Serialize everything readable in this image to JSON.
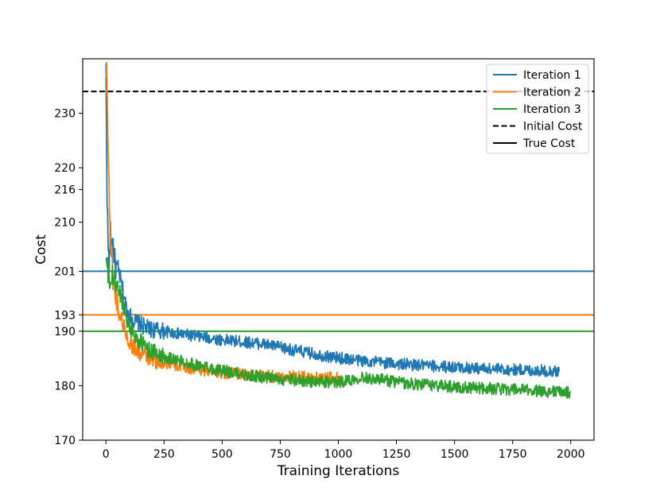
{
  "chart_data": {
    "type": "line",
    "title": "",
    "xlabel": "Training Iterations",
    "ylabel": "Cost",
    "xlim": [
      -100,
      2100
    ],
    "ylim": [
      170,
      240
    ],
    "xticks": [
      0,
      250,
      500,
      750,
      1000,
      1250,
      1500,
      1750,
      2000
    ],
    "yticks": [
      170,
      180,
      190,
      193,
      201,
      210,
      216,
      220,
      230
    ],
    "grid": false,
    "legend_position": "top-right",
    "series": [
      {
        "name": "Iteration 1",
        "color": "#1f77b4",
        "x": [
          0,
          5,
          10,
          15,
          20,
          25,
          30,
          40,
          50,
          60,
          70,
          80,
          90,
          100,
          120,
          140,
          160,
          180,
          200,
          250,
          300,
          350,
          400,
          450,
          500,
          550,
          600,
          650,
          700,
          750,
          800,
          850,
          900,
          950,
          1000,
          1100,
          1200,
          1300,
          1400,
          1500,
          1600,
          1700,
          1800,
          1900,
          1950
        ],
        "y": [
          238,
          215,
          204,
          203,
          209,
          205,
          206,
          202,
          201,
          200,
          198,
          196,
          194,
          193,
          192,
          191.5,
          191,
          190.5,
          190.3,
          190,
          189.6,
          189.3,
          189,
          188.7,
          188.4,
          188.2,
          188,
          187.8,
          187.5,
          187,
          186.6,
          186.2,
          185.8,
          185.4,
          185.1,
          184.6,
          184.2,
          183.9,
          183.6,
          183.4,
          183.2,
          183,
          182.9,
          182.7,
          182.6
        ]
      },
      {
        "name": "Iteration 2",
        "color": "#ff7f0e",
        "x": [
          0,
          3,
          6,
          10,
          15,
          20,
          25,
          30,
          40,
          50,
          60,
          70,
          80,
          90,
          100,
          120,
          140,
          160,
          180,
          200,
          250,
          300,
          350,
          400,
          450,
          500,
          600,
          700,
          800,
          900,
          1000,
          1020
        ],
        "y": [
          236,
          241,
          232,
          222,
          214,
          206,
          204,
          200,
          197,
          195,
          193,
          192,
          190.5,
          189,
          188,
          187,
          186.2,
          185.6,
          185.2,
          184.8,
          184.2,
          183.7,
          183.3,
          183,
          182.7,
          182.4,
          182,
          181.8,
          181.6,
          181.5,
          181.4,
          181.4
        ]
      },
      {
        "name": "Iteration 3",
        "color": "#2ca02c",
        "x": [
          0,
          5,
          10,
          20,
          30,
          40,
          50,
          60,
          70,
          80,
          90,
          100,
          120,
          140,
          160,
          180,
          200,
          250,
          300,
          350,
          400,
          450,
          500,
          550,
          600,
          700,
          800,
          900,
          1000,
          1100,
          1200,
          1300,
          1400,
          1500,
          1600,
          1700,
          1800,
          1900,
          2000
        ],
        "y": [
          203,
          202,
          200,
          199,
          200,
          199,
          198,
          197,
          195.5,
          194,
          192.5,
          191,
          189.5,
          188.3,
          187.5,
          186.8,
          186.2,
          185.4,
          184.8,
          184.2,
          183.7,
          183.2,
          182.8,
          182.4,
          182,
          181.4,
          181,
          180.7,
          180.6,
          181.6,
          181,
          180.4,
          180.1,
          179.8,
          179.6,
          179.4,
          179.2,
          179,
          178.8
        ]
      }
    ],
    "reference_lines": [
      {
        "name": "Initial Cost",
        "style": "dashed",
        "color": "#000000",
        "y": 234
      },
      {
        "name": "True Cost",
        "style": "solid",
        "color": "#000000",
        "y": null
      },
      {
        "name": "",
        "style": "solid",
        "color": "#1f77b4",
        "y": 201
      },
      {
        "name": "",
        "style": "solid",
        "color": "#ff7f0e",
        "y": 193
      },
      {
        "name": "",
        "style": "solid",
        "color": "#2ca02c",
        "y": 190
      }
    ],
    "legend": [
      {
        "label": "Iteration 1",
        "color": "#1f77b4",
        "style": "solid"
      },
      {
        "label": "Iteration 2",
        "color": "#ff7f0e",
        "style": "solid"
      },
      {
        "label": "Iteration 3",
        "color": "#2ca02c",
        "style": "solid"
      },
      {
        "label": "Initial Cost",
        "color": "#000000",
        "style": "dashed"
      },
      {
        "label": "True Cost",
        "color": "#000000",
        "style": "solid"
      }
    ]
  }
}
